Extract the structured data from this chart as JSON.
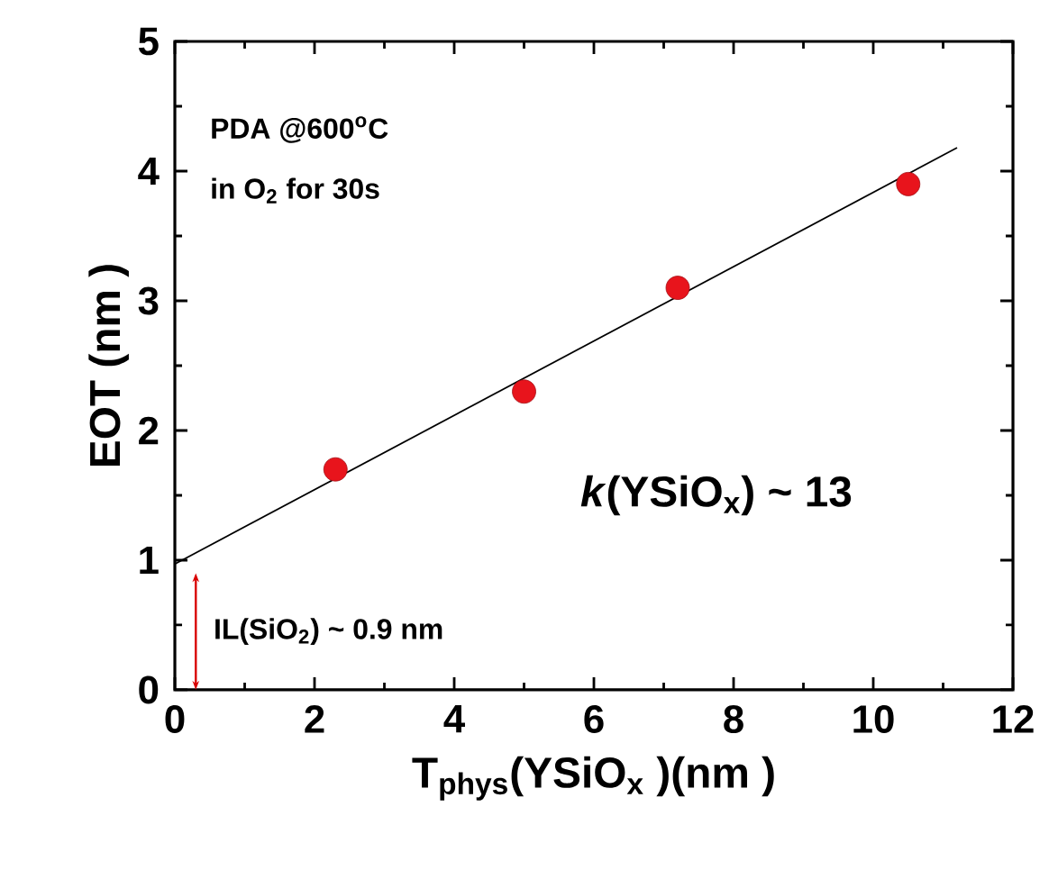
{
  "chart_data": {
    "type": "scatter",
    "xlabel": "T$_{phys}$(YSiO$_{x}$ )(nm )",
    "ylabel": "EOT (nm )",
    "xlim": [
      0,
      12
    ],
    "ylim": [
      0,
      5
    ],
    "xticks": [
      0,
      2,
      4,
      6,
      8,
      10,
      12
    ],
    "yticks": [
      0,
      1,
      2,
      3,
      4,
      5
    ],
    "marker": "circle",
    "series": [
      {
        "color": "#e8141c",
        "x": [
          2.3,
          5.0,
          7.2,
          10.5
        ],
        "values": [
          1.7,
          2.3,
          3.1,
          3.9
        ]
      },
      {
        "type": "line",
        "color": "#000000",
        "marker": "none",
        "x": [
          0,
          11.2
        ],
        "values": [
          0.97,
          4.18
        ]
      }
    ],
    "annotations": [
      "PDA @600$^{o}$C",
      "in O$_{2}$ for 30s",
      "*k*(YSiO$_{x}$) ~ 13",
      "IL(SiO$_{2}$) ~ 0.9 nm"
    ]
  }
}
